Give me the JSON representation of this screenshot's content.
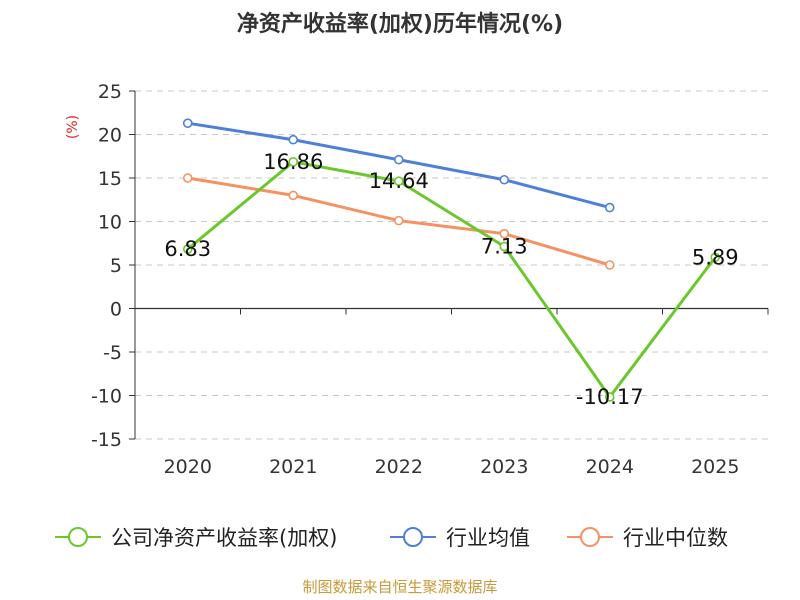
{
  "title": "净资产收益率(加权)历年情况(%)",
  "source": "制图数据来自恒生聚源数据库",
  "colors": {
    "company": "#6bc72b",
    "industry_avg": "#4f80d9",
    "industry_median": "#f59162",
    "grid": "#c8c8c8",
    "axis": "#333333",
    "unit": "#d62728",
    "source": "#c79a3a",
    "title": "#333333"
  },
  "chart_data": {
    "type": "line",
    "title": "净资产收益率(加权)历年情况(%)",
    "ylabel": "(%)",
    "xlabel": "",
    "categories": [
      "2020",
      "2021",
      "2022",
      "2023",
      "2024",
      "2025"
    ],
    "ylim": [
      -15,
      25
    ],
    "yticks": [
      25,
      20,
      15,
      10,
      5,
      0,
      -5,
      -10,
      -15
    ],
    "grid": true,
    "legend_position": "bottom",
    "series": [
      {
        "name": "公司净资产收益率(加权)",
        "key": "company",
        "values": [
          6.83,
          16.86,
          14.64,
          7.13,
          -10.17,
          5.89
        ],
        "labels": [
          "6.83",
          "16.86",
          "14.64",
          "7.13",
          "-10.17",
          "5.89"
        ]
      },
      {
        "name": "行业均值",
        "key": "industry_avg",
        "values": [
          21.3,
          19.4,
          17.1,
          14.8,
          11.6,
          null
        ]
      },
      {
        "name": "行业中位数",
        "key": "industry_median",
        "values": [
          15.0,
          13.0,
          10.1,
          8.6,
          5.0,
          null
        ]
      }
    ]
  }
}
